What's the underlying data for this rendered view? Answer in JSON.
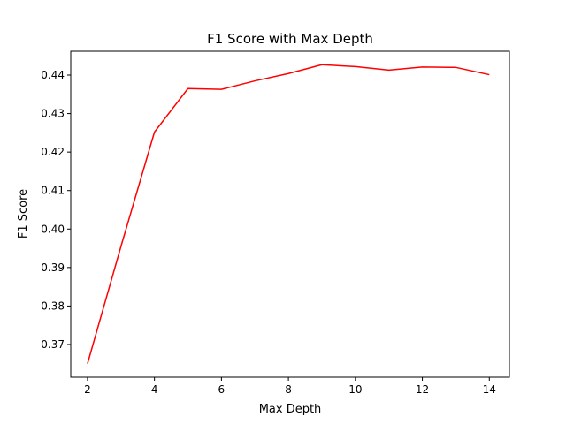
{
  "chart_data": {
    "type": "line",
    "title": "F1 Score with Max Depth",
    "xlabel": "Max Depth",
    "ylabel": "F1 Score",
    "xlim": [
      1.5,
      14.6
    ],
    "ylim": [
      0.3615,
      0.4462
    ],
    "xticks": [
      2,
      4,
      6,
      8,
      10,
      12,
      14
    ],
    "yticks": [
      0.37,
      0.38,
      0.39,
      0.4,
      0.41,
      0.42,
      0.43,
      0.44
    ],
    "ytick_labels": [
      "0.37",
      "0.38",
      "0.39",
      "0.40",
      "0.41",
      "0.42",
      "0.43",
      "0.44"
    ],
    "grid": false,
    "series": [
      {
        "color": "#ff0000",
        "x": [
          2,
          3,
          4,
          5,
          6,
          7,
          8,
          9,
          10,
          11,
          12,
          13,
          14
        ],
        "y": [
          0.365,
          0.3955,
          0.4252,
          0.4365,
          0.4363,
          0.4385,
          0.4404,
          0.4427,
          0.4422,
          0.4413,
          0.4421,
          0.442,
          0.4401
        ]
      }
    ]
  }
}
